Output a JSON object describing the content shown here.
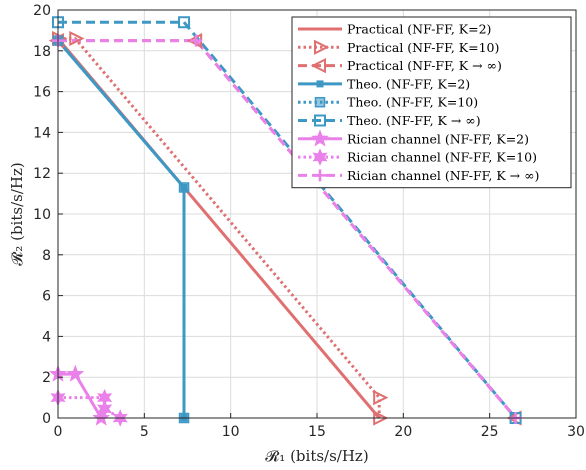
{
  "chart_data": {
    "type": "line",
    "title": "",
    "xlabel": "𝓡₁ (bits/s/Hz)",
    "ylabel": "𝓡₂ (bits/s/Hz)",
    "xlim": [
      0,
      30
    ],
    "ylim": [
      0,
      20
    ],
    "xticks": [
      0,
      5,
      10,
      15,
      20,
      25,
      30
    ],
    "yticks": [
      0,
      2,
      4,
      6,
      8,
      10,
      12,
      14,
      16,
      18,
      20
    ],
    "grid": true,
    "legend_position": "top-right",
    "series": [
      {
        "name": "Practical (NF-FF, K=2)",
        "color": "#e07070",
        "dash": "solid",
        "marker": "none",
        "x": [
          0,
          18.6
        ],
        "y": [
          18.6,
          0
        ]
      },
      {
        "name": "Practical (NF-FF, K=10)",
        "color": "#e07070",
        "dash": "dot",
        "marker": "triangle-right",
        "x": [
          0,
          1.0,
          18.6,
          18.6
        ],
        "y": [
          18.6,
          18.6,
          1.0,
          0
        ]
      },
      {
        "name": "Practical (NF-FF, K → ∞)",
        "color": "#e07070",
        "dash": "dash",
        "marker": "triangle-left",
        "x": [
          0,
          8.0,
          26.5
        ],
        "y": [
          18.5,
          18.5,
          0
        ]
      },
      {
        "name": "Theo. (NF-FF, K=2)",
        "color": "#3d98c4",
        "dash": "solid",
        "marker": "square-small",
        "x": [
          0,
          7.3,
          7.3
        ],
        "y": [
          18.5,
          11.3,
          0
        ]
      },
      {
        "name": "Theo. (NF-FF, K=10)",
        "color": "#3d98c4",
        "dash": "dot",
        "marker": "square",
        "x": [
          0,
          7.3,
          7.3
        ],
        "y": [
          18.5,
          11.3,
          0
        ]
      },
      {
        "name": "Theo. (NF-FF, K → ∞)",
        "color": "#3d98c4",
        "dash": "dash",
        "marker": "square-open",
        "x": [
          0,
          7.3,
          26.5
        ],
        "y": [
          19.4,
          19.4,
          0
        ]
      },
      {
        "name": "Rician channel (NF-FF, K=2)",
        "color": "#ea80ea",
        "dash": "solid",
        "marker": "star",
        "x": [
          0,
          1.0,
          2.5
        ],
        "y": [
          2.15,
          2.15,
          0
        ]
      },
      {
        "name": "Rician channel (NF-FF, K=10)",
        "color": "#ea80ea",
        "dash": "dot",
        "marker": "star6",
        "x": [
          0,
          2.7,
          2.7,
          3.6
        ],
        "y": [
          1.0,
          1.0,
          0.45,
          0
        ]
      },
      {
        "name": "Rician channel (NF-FF, K → ∞)",
        "color": "#ea80ea",
        "dash": "dash",
        "marker": "plus",
        "x": [
          0,
          8.0,
          26.5
        ],
        "y": [
          18.5,
          18.5,
          0
        ]
      }
    ]
  }
}
